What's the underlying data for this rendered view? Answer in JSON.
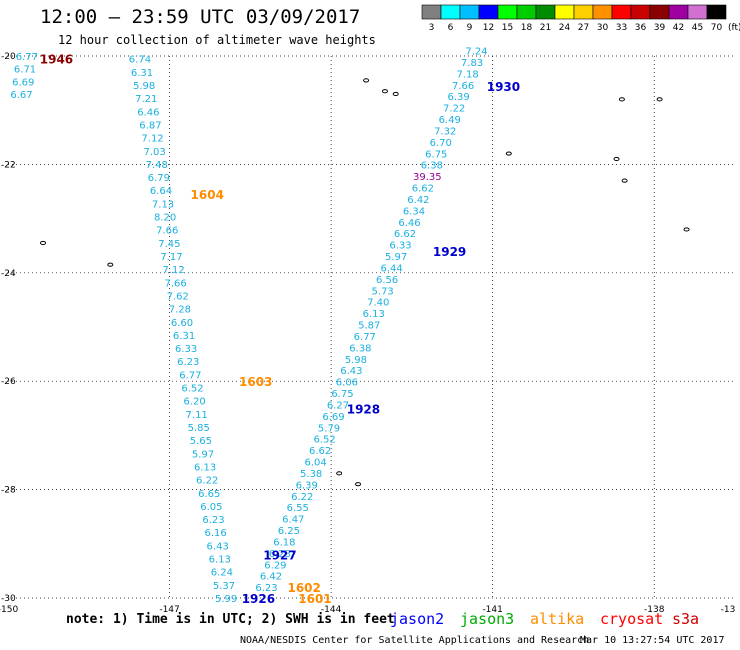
{
  "header": {
    "title": "12:00 — 23:59 UTC 03/09/2017",
    "subtitle": "12 hour collection of altimeter wave heights"
  },
  "colorbar": {
    "unit": "(ft)",
    "bins": [
      {
        "label": "3",
        "color": "#808080"
      },
      {
        "label": "6",
        "color": "#00ffff"
      },
      {
        "label": "9",
        "color": "#00bfff"
      },
      {
        "label": "12",
        "color": "#0000ff"
      },
      {
        "label": "15",
        "color": "#00ff00"
      },
      {
        "label": "18",
        "color": "#00cc00"
      },
      {
        "label": "21",
        "color": "#008c00"
      },
      {
        "label": "24",
        "color": "#ffff00"
      },
      {
        "label": "27",
        "color": "#ffd000"
      },
      {
        "label": "30",
        "color": "#ff9000"
      },
      {
        "label": "33",
        "color": "#ff0000"
      },
      {
        "label": "36",
        "color": "#c80000"
      },
      {
        "label": "39",
        "color": "#8b0000"
      },
      {
        "label": "42",
        "color": "#a000a0"
      },
      {
        "label": "45",
        "color": "#d070d0"
      },
      {
        "label": "70",
        "color": "#000000"
      }
    ]
  },
  "axes": {
    "lon_ticks": [
      "-150",
      "-147",
      "-144",
      "-141",
      "-138",
      "-13"
    ],
    "lat_ticks": [
      "-20",
      "-22",
      "-24",
      "-26",
      "-28",
      "-30"
    ]
  },
  "colors": {
    "cyan_label": "#1ab0e0",
    "blue_time": "#0000cc",
    "orange_time": "#ff8c00",
    "darkred_time": "#8b0000",
    "purple_value": "#990099",
    "jason2": "#0000ff",
    "jason3": "#00aa00",
    "altika": "#ff8c00",
    "cryosat": "#ff0000",
    "s3a": "#cc0000"
  },
  "footer": {
    "note": "note: 1) Time is in UTC; 2) SWH is in feet",
    "credit": "NOAA/NESDIS Center for Satellite Applications and Research",
    "timestamp": "Mar 10 13:27:54 UTC 2017",
    "satellites": [
      {
        "name": "jason2",
        "color": "#0000ff"
      },
      {
        "name": "jason3",
        "color": "#00aa00"
      },
      {
        "name": "altika",
        "color": "#ff8c00"
      },
      {
        "name": "cryosat",
        "color": "#ff0000"
      },
      {
        "name": "s3a",
        "color": "#cc0000"
      }
    ]
  },
  "time_labels": [
    {
      "text": "1946",
      "lon": -149.1,
      "lat": -20.05,
      "color": "#8b0000"
    },
    {
      "text": "1604",
      "lon": -146.3,
      "lat": -22.55,
      "color": "#ff8c00"
    },
    {
      "text": "1603",
      "lon": -145.4,
      "lat": -26.0,
      "color": "#ff8c00"
    },
    {
      "text": "1602",
      "lon": -144.5,
      "lat": -29.8,
      "color": "#ff8c00"
    },
    {
      "text": "1601",
      "lon": -144.3,
      "lat": -30.0,
      "color": "#ff8c00"
    },
    {
      "text": "1930",
      "lon": -140.8,
      "lat": -20.55,
      "color": "#0000cc"
    },
    {
      "text": "1929",
      "lon": -141.8,
      "lat": -23.6,
      "color": "#0000cc"
    },
    {
      "text": "1928",
      "lon": -143.4,
      "lat": -26.5,
      "color": "#0000cc"
    },
    {
      "text": "1927",
      "lon": -144.95,
      "lat": -29.2,
      "color": "#0000cc"
    },
    {
      "text": "1926",
      "lon": -145.35,
      "lat": -30.0,
      "color": "#0000cc"
    }
  ],
  "tracks": [
    {
      "name": "nw",
      "color": "#1ab0e0",
      "values": [
        "6.77",
        "6.71",
        "6.69",
        "6.67"
      ],
      "start": [
        -149.65,
        -20.0
      ],
      "end": [
        -149.75,
        -20.7
      ]
    },
    {
      "name": "altika",
      "color": "#1ab0e0",
      "values": [
        "6.74",
        "6.31",
        "5.98",
        "7.21",
        "6.46",
        "6.87",
        "7.12",
        "7.03",
        "7.48",
        "6.79",
        "6.64",
        "7.13",
        "8.20",
        "7.66",
        "7.45",
        "7.17",
        "7.12",
        "7.66",
        "7.62",
        "7.28",
        "6.60",
        "6.31",
        "6.33",
        "6.23",
        "6.77",
        "6.52",
        "6.20",
        "7.11",
        "5.85",
        "5.65",
        "5.97",
        "6.13",
        "6.22",
        "6.65",
        "6.05",
        "6.23",
        "6.16",
        "6.43",
        "6.13",
        "6.24",
        "5.37",
        "5.99"
      ],
      "start": [
        -147.55,
        -20.05
      ],
      "end": [
        -145.95,
        -30.0
      ]
    },
    {
      "name": "jason2",
      "color": "#1ab0e0",
      "values": [
        "7.24",
        "7.83",
        "7.18",
        "7.66",
        "6.39",
        "7.22",
        "6.49",
        "7.32",
        "6.70",
        "6.75",
        "6.38",
        "39.35",
        "6.62",
        "6.42",
        "6.34",
        "6.46",
        "6.62",
        "6.33",
        "5.97",
        "6.44",
        "6.56",
        "5.73",
        "7.40",
        "6.13",
        "5.87",
        "6.77",
        "6.38",
        "5.98",
        "6.43",
        "6.06",
        "6.75",
        "6.27",
        "6.69",
        "5.79",
        "6.52",
        "6.62",
        "6.04",
        "5.38",
        "6.39",
        "6.22",
        "6.55",
        "6.47",
        "6.25",
        "6.18",
        "6.23",
        "6.29",
        "6.42",
        "6.23"
      ],
      "start": [
        -141.3,
        -19.9
      ],
      "end": [
        -145.2,
        -29.8
      ]
    }
  ],
  "land": [
    {
      "lon": -143.35,
      "lat": -20.45
    },
    {
      "lon": -143.0,
      "lat": -20.65
    },
    {
      "lon": -142.8,
      "lat": -20.7
    },
    {
      "lon": -140.7,
      "lat": -21.8
    },
    {
      "lon": -138.6,
      "lat": -20.8
    },
    {
      "lon": -137.9,
      "lat": -20.8
    },
    {
      "lon": -138.7,
      "lat": -21.9
    },
    {
      "lon": -138.55,
      "lat": -22.3
    },
    {
      "lon": -136.3,
      "lat": -21.3
    },
    {
      "lon": -136.1,
      "lat": -21.35
    },
    {
      "lon": -135.95,
      "lat": -21.45
    },
    {
      "lon": -135.6,
      "lat": -22.05
    },
    {
      "lon": -135.05,
      "lat": -21.55
    },
    {
      "lon": -137.4,
      "lat": -23.2
    },
    {
      "lon": -149.35,
      "lat": -23.45
    },
    {
      "lon": -148.1,
      "lat": -23.85
    },
    {
      "lon": -143.85,
      "lat": -27.7
    },
    {
      "lon": -143.5,
      "lat": -27.9
    }
  ]
}
